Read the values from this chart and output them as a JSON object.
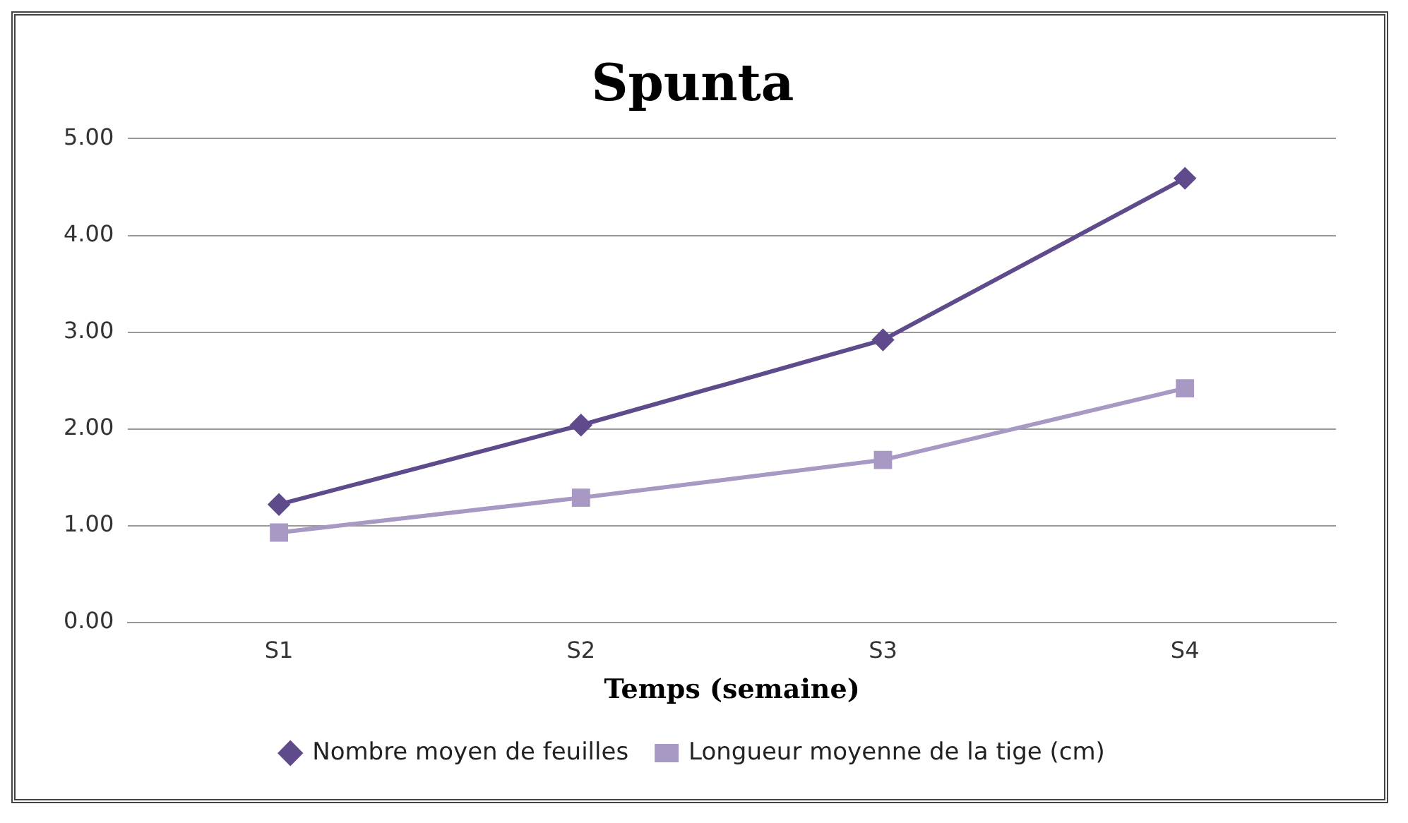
{
  "chart_data": {
    "type": "line",
    "title": "Spunta",
    "xlabel": "Temps (semaine)",
    "categories": [
      "S1",
      "S2",
      "S3",
      "S4"
    ],
    "series": [
      {
        "name": "Nombre moyen de feuilles",
        "color": "#5f4b8b",
        "marker": "diamond",
        "values": [
          1.22,
          2.04,
          2.92,
          4.59
        ]
      },
      {
        "name": "Longueur moyenne de la tige (cm)",
        "color": "#a898c4",
        "marker": "square",
        "values": [
          0.93,
          1.29,
          1.68,
          2.42
        ]
      }
    ],
    "ylim": [
      0,
      5
    ],
    "yticks": [
      {
        "value": 0,
        "label": "0.00"
      },
      {
        "value": 1,
        "label": "1.00"
      },
      {
        "value": 2,
        "label": "2.00"
      },
      {
        "value": 3,
        "label": "3.00"
      },
      {
        "value": 4,
        "label": "4.00"
      },
      {
        "value": 5,
        "label": "5.00"
      }
    ],
    "grid": "y",
    "legend": "bottom",
    "line_style": "solid"
  }
}
